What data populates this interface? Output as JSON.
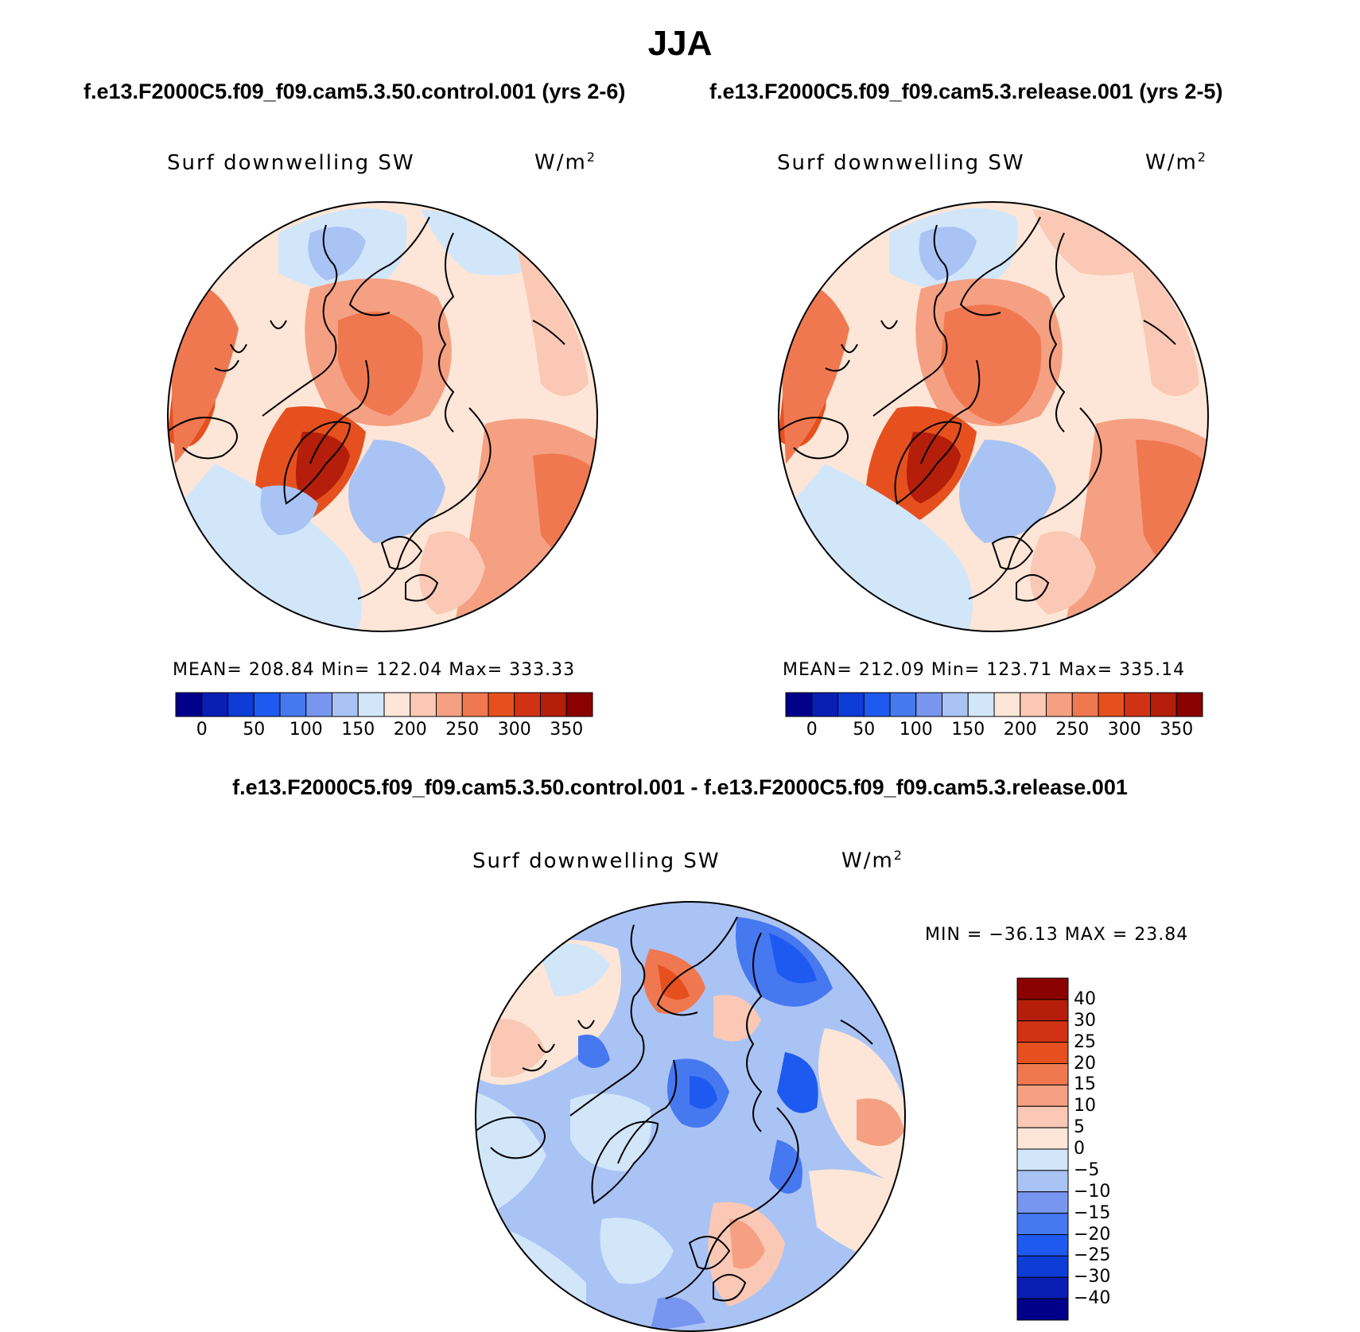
{
  "figure": {
    "season": "JJA",
    "case_left": "f.e13.F2000C5.f09_f09.cam5.3.50.control.001 (yrs 2-6)",
    "case_right": "f.e13.F2000C5.f09_f09.cam5.3.release.001 (yrs 2-5)",
    "diff_title": "f.e13.F2000C5.f09_f09.cam5.3.50.control.001 - f.e13.F2000C5.f09_f09.cam5.3.release.001"
  },
  "panels": {
    "left": {
      "variable": "Surf downwelling SW",
      "units": "W/m",
      "units_exp": "2",
      "stats": "MEAN= 208.84   Min= 122.04   Max= 333.33",
      "projection": "north-polar-stereographic",
      "colorbar_labels": [
        "0",
        "50",
        "100",
        "150",
        "200",
        "250",
        "300",
        "350"
      ]
    },
    "right": {
      "variable": "Surf downwelling SW",
      "units": "W/m",
      "units_exp": "2",
      "stats": "MEAN= 212.09   Min= 123.71   Max= 335.14",
      "projection": "north-polar-stereographic",
      "colorbar_labels": [
        "0",
        "50",
        "100",
        "150",
        "200",
        "250",
        "300",
        "350"
      ]
    },
    "diff": {
      "variable": "Surf downwelling SW",
      "units": "W/m",
      "units_exp": "2",
      "stats": "MIN = −36.13 MAX =  23.84",
      "projection": "north-polar-stereographic",
      "colorbar_labels": [
        "40",
        "30",
        "25",
        "20",
        "15",
        "10",
        "5",
        "0",
        "−5",
        "−10",
        "−15",
        "−20",
        "−25",
        "−30",
        "−40"
      ]
    }
  },
  "colors": {
    "abs_scale": [
      "#00008b",
      "#0a1eb4",
      "#0d3cd6",
      "#1e5af0",
      "#4678f0",
      "#7896f0",
      "#aac3f5",
      "#d2e6fa",
      "#fde6d7",
      "#fac8b4",
      "#f5a082",
      "#f07850",
      "#e6501e",
      "#d23214",
      "#b41e0a",
      "#8b0000"
    ],
    "diff_scale": [
      "#8b0000",
      "#b41e0a",
      "#d23214",
      "#e6501e",
      "#f07850",
      "#f5a082",
      "#fac8b4",
      "#fde6d7",
      "#d2e6fa",
      "#aac3f5",
      "#7896f0",
      "#4678f0",
      "#1e5af0",
      "#0d3cd6",
      "#0a1eb4",
      "#00008b"
    ]
  }
}
